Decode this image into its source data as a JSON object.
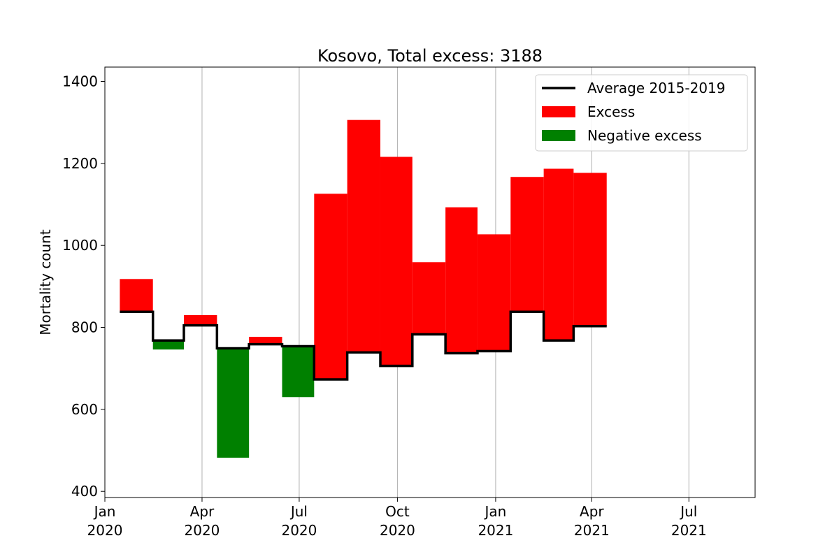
{
  "chart_data": {
    "type": "area",
    "title": "Kosovo, Total excess: 3188",
    "xlabel": "",
    "ylabel": "Mortality count",
    "ylim": [
      385,
      1435
    ],
    "xlim": [
      "2020-01-01",
      "2021-09-01"
    ],
    "grid": "vertical",
    "legend_position": "top-right",
    "x_ticks": [
      {
        "date": "2020-01-01",
        "line1": "Jan",
        "line2": "2020"
      },
      {
        "date": "2020-04-01",
        "line1": "Apr",
        "line2": "2020"
      },
      {
        "date": "2020-07-01",
        "line1": "Jul",
        "line2": "2020"
      },
      {
        "date": "2020-10-01",
        "line1": "Oct",
        "line2": "2020"
      },
      {
        "date": "2021-01-01",
        "line1": "Jan",
        "line2": "2021"
      },
      {
        "date": "2021-04-01",
        "line1": "Apr",
        "line2": "2021"
      },
      {
        "date": "2021-07-01",
        "line1": "Jul",
        "line2": "2021"
      }
    ],
    "y_ticks": [
      400,
      600,
      800,
      1000,
      1200,
      1400
    ],
    "periods": [
      {
        "start": "2020-01-15",
        "end": "2020-02-15",
        "average": 838,
        "actual": 918
      },
      {
        "start": "2020-02-15",
        "end": "2020-03-15",
        "average": 768,
        "actual": 746
      },
      {
        "start": "2020-03-15",
        "end": "2020-04-15",
        "average": 805,
        "actual": 830
      },
      {
        "start": "2020-04-15",
        "end": "2020-05-15",
        "average": 749,
        "actual": 482
      },
      {
        "start": "2020-05-15",
        "end": "2020-06-15",
        "average": 759,
        "actual": 777
      },
      {
        "start": "2020-06-15",
        "end": "2020-07-15",
        "average": 754,
        "actual": 630
      },
      {
        "start": "2020-07-15",
        "end": "2020-08-15",
        "average": 673,
        "actual": 1126
      },
      {
        "start": "2020-08-15",
        "end": "2020-09-15",
        "average": 739,
        "actual": 1306
      },
      {
        "start": "2020-09-15",
        "end": "2020-10-15",
        "average": 706,
        "actual": 1216
      },
      {
        "start": "2020-10-15",
        "end": "2020-11-15",
        "average": 783,
        "actual": 959
      },
      {
        "start": "2020-11-15",
        "end": "2020-12-15",
        "average": 737,
        "actual": 1093
      },
      {
        "start": "2020-12-15",
        "end": "2021-01-15",
        "average": 742,
        "actual": 1027
      },
      {
        "start": "2021-01-15",
        "end": "2021-02-15",
        "average": 838,
        "actual": 1167
      },
      {
        "start": "2021-02-15",
        "end": "2021-03-15",
        "average": 768,
        "actual": 1187
      },
      {
        "start": "2021-03-15",
        "end": "2021-04-15",
        "average": 803,
        "actual": 1177
      }
    ],
    "legend": [
      {
        "label": "Average 2015-2019",
        "kind": "line",
        "color": "#000000"
      },
      {
        "label": "Excess",
        "kind": "patch",
        "color": "#ff0000"
      },
      {
        "label": "Negative excess",
        "kind": "patch",
        "color": "#008000"
      }
    ],
    "colors": {
      "excess": "#ff0000",
      "negative": "#008000",
      "average": "#000000",
      "grid": "#b0b0b0"
    }
  }
}
